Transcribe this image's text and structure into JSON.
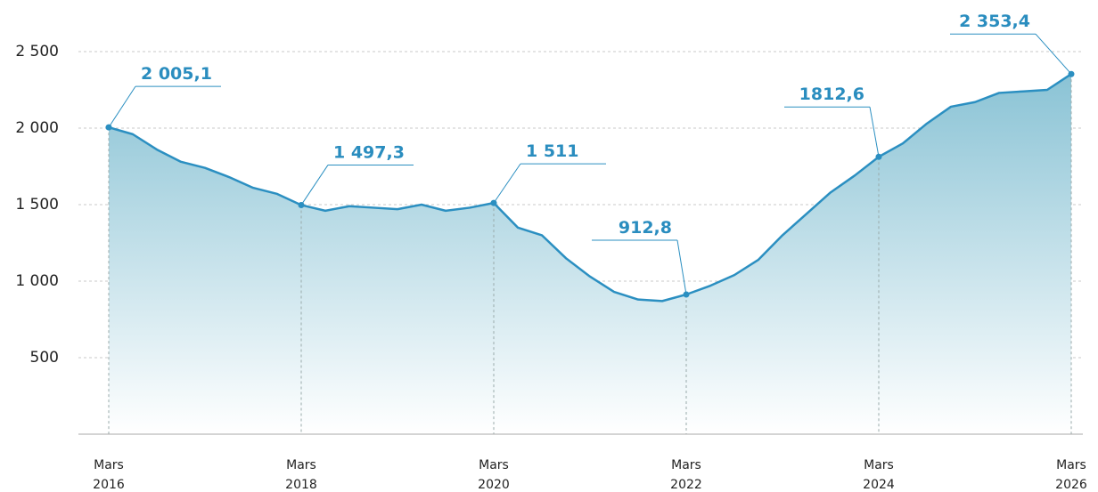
{
  "chart_data": {
    "type": "area",
    "categories": [
      "Mars 2016",
      null,
      null,
      null,
      null,
      null,
      null,
      null,
      "Mars 2018",
      null,
      null,
      null,
      null,
      null,
      null,
      null,
      "Mars 2020",
      null,
      null,
      null,
      null,
      null,
      null,
      null,
      "Mars 2022",
      null,
      null,
      null,
      null,
      null,
      null,
      null,
      "Mars 2024",
      null,
      null,
      null,
      null,
      null,
      null,
      null,
      "Mars 2026"
    ],
    "values": [
      2005.1,
      1960,
      1860,
      1780,
      1740,
      1680,
      1610,
      1570,
      1497.3,
      1460,
      1490,
      1480,
      1470,
      1500,
      1460,
      1480,
      1511,
      1350,
      1300,
      1150,
      1030,
      930,
      880,
      870,
      912.8,
      970,
      1040,
      1140,
      1300,
      1440,
      1580,
      1690,
      1812.6,
      1900,
      2030,
      2140,
      2170,
      2230,
      2240,
      2250,
      2353.4
    ],
    "value_labels": [
      "2 005,1",
      null,
      null,
      null,
      null,
      null,
      null,
      null,
      "1 497,3",
      null,
      null,
      null,
      null,
      null,
      null,
      null,
      "1 511",
      null,
      null,
      null,
      null,
      null,
      null,
      null,
      "912,8",
      null,
      null,
      null,
      null,
      null,
      null,
      null,
      "1812,6",
      null,
      null,
      null,
      null,
      null,
      null,
      null,
      "2 353,4"
    ],
    "color": "#2b8fc1",
    "ylim": [
      0,
      2500
    ],
    "yticks": [
      {
        "value": 500,
        "label": "500"
      },
      {
        "value": 1000,
        "label": "1 000"
      },
      {
        "value": 1500,
        "label": "1 500"
      },
      {
        "value": 2000,
        "label": "2 000"
      },
      {
        "value": 2500,
        "label": "2 500"
      }
    ],
    "grid": true
  }
}
